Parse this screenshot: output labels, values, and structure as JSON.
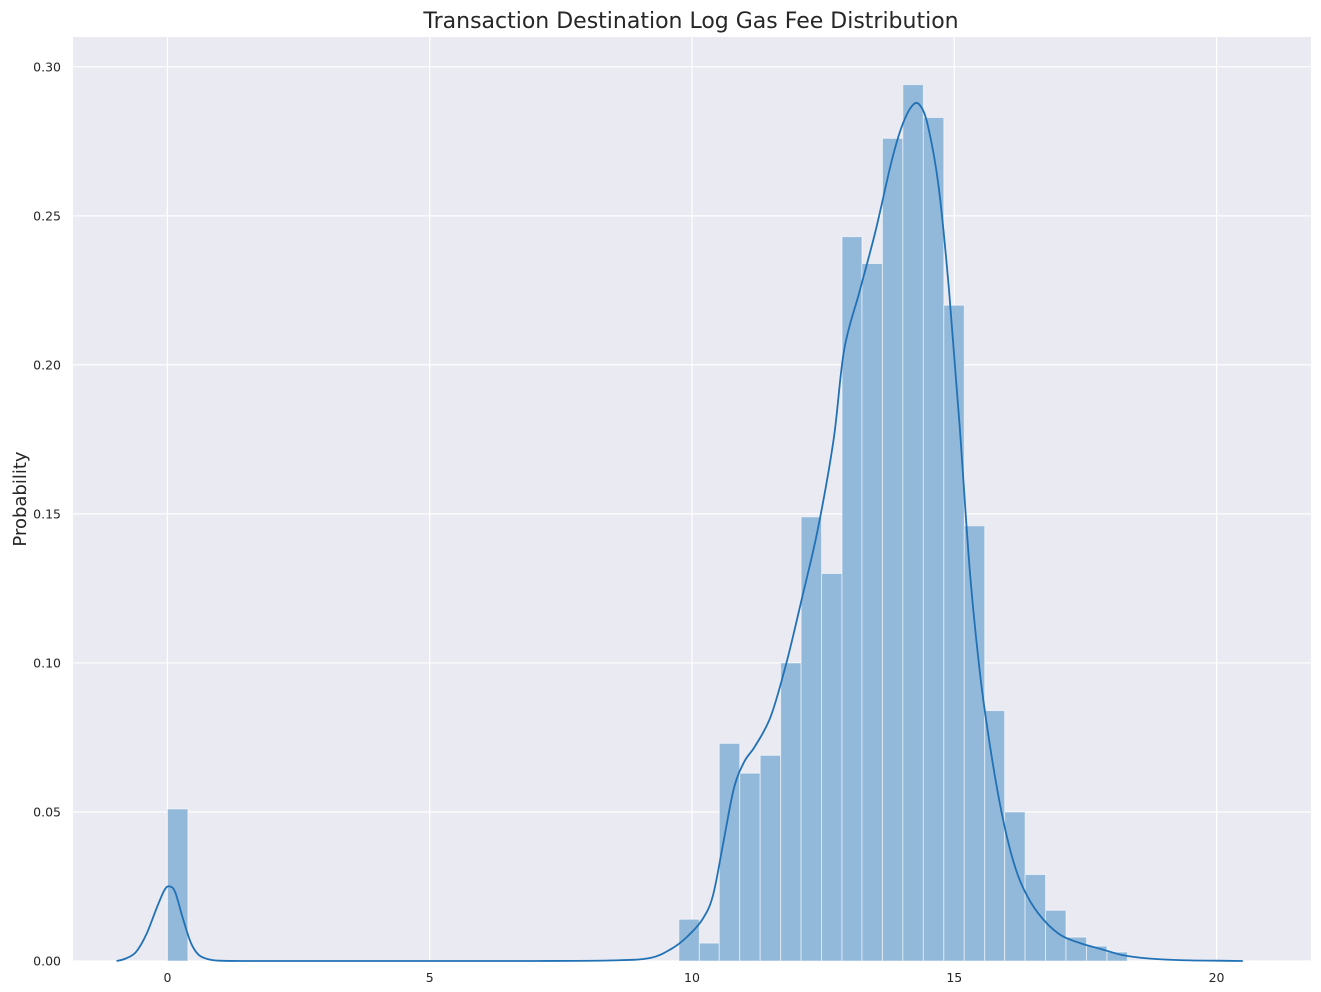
{
  "chart_data": {
    "type": "bar",
    "title": "Transaction Destination Log Gas Fee Distribution",
    "xlabel": "",
    "ylabel": "Probability",
    "xlim": [
      -1.8,
      21.8
    ],
    "ylim": [
      0,
      0.31
    ],
    "grid": true,
    "colors": {
      "background": "#eaeaf2",
      "grid": "#ffffff",
      "bar": "#92b8da",
      "kde": "#2171b5"
    },
    "xticks": [
      {
        "value": 0,
        "label": "0"
      },
      {
        "value": 5,
        "label": "5"
      },
      {
        "value": 10,
        "label": "10"
      },
      {
        "value": 15,
        "label": "15"
      },
      {
        "value": 20,
        "label": "20"
      }
    ],
    "yticks": [
      {
        "value": 0.0,
        "label": "0.00"
      },
      {
        "value": 0.05,
        "label": "0.05"
      },
      {
        "value": 0.1,
        "label": "0.10"
      },
      {
        "value": 0.15,
        "label": "0.15"
      },
      {
        "value": 0.2,
        "label": "0.20"
      },
      {
        "value": 0.25,
        "label": "0.25"
      },
      {
        "value": 0.3,
        "label": "0.30"
      }
    ],
    "histogram": [
      {
        "x0": 0.0,
        "x1": 0.39,
        "value": 0.051
      },
      {
        "x0": 9.75,
        "x1": 10.14,
        "value": 0.014
      },
      {
        "x0": 10.14,
        "x1": 10.52,
        "value": 0.006
      },
      {
        "x0": 10.52,
        "x1": 10.91,
        "value": 0.073
      },
      {
        "x0": 10.91,
        "x1": 11.3,
        "value": 0.063
      },
      {
        "x0": 11.3,
        "x1": 11.69,
        "value": 0.069
      },
      {
        "x0": 11.69,
        "x1": 12.08,
        "value": 0.1
      },
      {
        "x0": 12.08,
        "x1": 12.47,
        "value": 0.149
      },
      {
        "x0": 12.47,
        "x1": 12.86,
        "value": 0.13
      },
      {
        "x0": 12.86,
        "x1": 13.24,
        "value": 0.243
      },
      {
        "x0": 13.24,
        "x1": 13.63,
        "value": 0.234
      },
      {
        "x0": 13.63,
        "x1": 14.02,
        "value": 0.276
      },
      {
        "x0": 14.02,
        "x1": 14.41,
        "value": 0.294
      },
      {
        "x0": 14.41,
        "x1": 14.8,
        "value": 0.283
      },
      {
        "x0": 14.8,
        "x1": 15.19,
        "value": 0.22
      },
      {
        "x0": 15.19,
        "x1": 15.58,
        "value": 0.146
      },
      {
        "x0": 15.58,
        "x1": 15.96,
        "value": 0.084
      },
      {
        "x0": 15.96,
        "x1": 16.35,
        "value": 0.05
      },
      {
        "x0": 16.35,
        "x1": 16.74,
        "value": 0.029
      },
      {
        "x0": 16.74,
        "x1": 17.13,
        "value": 0.017
      },
      {
        "x0": 17.13,
        "x1": 17.52,
        "value": 0.008
      },
      {
        "x0": 17.52,
        "x1": 17.91,
        "value": 0.005
      },
      {
        "x0": 17.91,
        "x1": 18.3,
        "value": 0.003
      }
    ],
    "kde": {
      "x": [
        -0.97,
        -0.8,
        -0.6,
        -0.4,
        -0.2,
        -0.05,
        0.05,
        0.15,
        0.3,
        0.45,
        0.6,
        0.8,
        1.0,
        1.5,
        3.0,
        5.0,
        7.0,
        8.5,
        9.2,
        9.6,
        9.9,
        10.2,
        10.4,
        10.6,
        10.8,
        11.0,
        11.2,
        11.5,
        11.8,
        12.1,
        12.4,
        12.7,
        12.9,
        13.2,
        13.5,
        13.8,
        14.0,
        14.2,
        14.35,
        14.5,
        14.7,
        14.9,
        15.1,
        15.3,
        15.5,
        15.7,
        15.9,
        16.1,
        16.3,
        16.6,
        17.0,
        17.4,
        17.8,
        18.2,
        18.6,
        19.0,
        19.5,
        20.0,
        20.5
      ],
      "y": [
        0.0,
        0.0008,
        0.003,
        0.009,
        0.018,
        0.024,
        0.025,
        0.023,
        0.014,
        0.006,
        0.002,
        0.0005,
        0.0001,
        0.0,
        0.0,
        0.0,
        0.0,
        0.0002,
        0.001,
        0.004,
        0.008,
        0.014,
        0.022,
        0.04,
        0.058,
        0.067,
        0.072,
        0.082,
        0.1,
        0.122,
        0.145,
        0.175,
        0.205,
        0.225,
        0.245,
        0.268,
        0.28,
        0.287,
        0.287,
        0.28,
        0.26,
        0.225,
        0.18,
        0.13,
        0.095,
        0.07,
        0.05,
        0.035,
        0.025,
        0.016,
        0.009,
        0.006,
        0.004,
        0.002,
        0.001,
        0.0005,
        0.0002,
        0.0001,
        0.0
      ]
    }
  }
}
